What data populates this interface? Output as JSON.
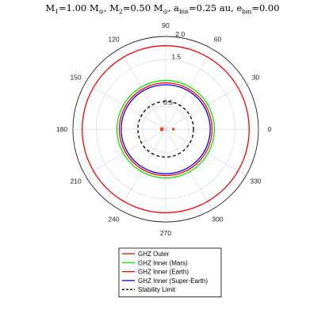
{
  "chart_data": {
    "type": "polar",
    "title_parts": {
      "m1": "M",
      "m1_sub": "1",
      "m1_val": "=1.00 M",
      "sun1": "⊙",
      "m2": ", M",
      "m2_sub": "2",
      "m2_val": "=0.50 M",
      "sun2": "⊙",
      "abin": ", a",
      "abin_sub": "bin",
      "abin_val": "=0.25 au, e",
      "ebin_sub": "bin",
      "ebin_val": "=0.00"
    },
    "rlim": [
      0,
      2.0
    ],
    "r_ticks": [
      0.5,
      1.0,
      1.5,
      2.0
    ],
    "r_tick_labels": [
      "0.5",
      "",
      "1.5",
      "2.0"
    ],
    "theta_ticks": [
      0,
      30,
      60,
      90,
      120,
      150,
      180,
      210,
      240,
      270,
      300,
      330
    ],
    "theta_tick_labels": [
      "0",
      "30",
      "60",
      "90",
      "120",
      "150",
      "180",
      "210",
      "240",
      "270",
      "300",
      "330"
    ],
    "grid": true,
    "series": [
      {
        "name": "GHZ Outer",
        "r": 1.8,
        "color": "#ff0000",
        "dash": false
      },
      {
        "name": "GHZ Inner (Mars)",
        "r": 1.05,
        "color": "#00ee00",
        "dash": false
      },
      {
        "name": "GHZ Inner (Earth)",
        "r": 1.0,
        "color": "#ff0000",
        "dash": false
      },
      {
        "name": "GHZ Inner (Super-Earth)",
        "r": 0.96,
        "color": "#0000ff",
        "dash": false
      },
      {
        "name": "Stability Limit",
        "r": 0.6,
        "color": "#000000",
        "dash": true
      }
    ],
    "stars": [
      {
        "r": 0.0833,
        "theta": 180,
        "color": "#ff4500",
        "size": 1.0
      },
      {
        "r": 0.1667,
        "theta": 0,
        "color": "#ff4500",
        "size": 0.75
      }
    ],
    "legend_position": "bottom"
  }
}
